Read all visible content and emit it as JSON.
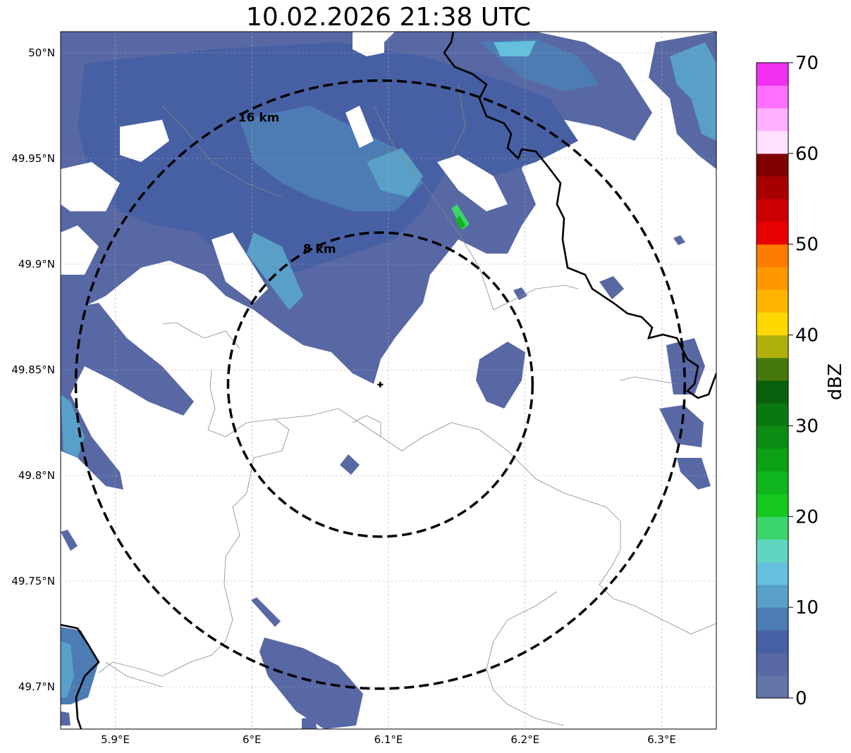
{
  "title": "10.02.2026 21:38 UTC",
  "map": {
    "lon_range": [
      5.86,
      6.34
    ],
    "lat_range": [
      49.68,
      50.01
    ],
    "lon_ticks": [
      {
        "value": 5.9,
        "label": "5.9°E"
      },
      {
        "value": 6.0,
        "label": "6°E"
      },
      {
        "value": 6.1,
        "label": "6.1°E"
      },
      {
        "value": 6.2,
        "label": "6.2°E"
      },
      {
        "value": 6.3,
        "label": "6.3°E"
      }
    ],
    "lat_ticks": [
      {
        "value": 50.0,
        "label": "50°N"
      },
      {
        "value": 49.95,
        "label": "49.95°N"
      },
      {
        "value": 49.9,
        "label": "49.9°N"
      },
      {
        "value": 49.85,
        "label": "49.85°N"
      },
      {
        "value": 49.8,
        "label": "49.8°N"
      },
      {
        "value": 49.75,
        "label": "49.75°N"
      },
      {
        "value": 49.7,
        "label": "49.7°N"
      }
    ],
    "gridlines": true,
    "radar_site": {
      "lon": 6.094,
      "lat": 49.843
    },
    "range_rings": [
      {
        "radius_km": 8,
        "label": "8 km"
      },
      {
        "radius_km": 16,
        "label": "16 km"
      }
    ],
    "ring_style": "black dashed"
  },
  "colorbar": {
    "label": "dBZ",
    "min": 0,
    "max": 70,
    "tick_values": [
      0,
      10,
      20,
      30,
      40,
      50,
      60,
      70
    ],
    "tick_labels": [
      "0",
      "10",
      "20",
      "30",
      "40",
      "50",
      "60",
      "70"
    ],
    "bins": [
      {
        "from": 0,
        "to": 2.5,
        "color": "#6474a8"
      },
      {
        "from": 2.5,
        "to": 5,
        "color": "#5868a4"
      },
      {
        "from": 5,
        "to": 7.5,
        "color": "#4760a4"
      },
      {
        "from": 7.5,
        "to": 10,
        "color": "#4d7cb4"
      },
      {
        "from": 10,
        "to": 12.5,
        "color": "#58a0c8"
      },
      {
        "from": 12.5,
        "to": 15,
        "color": "#64c0dc"
      },
      {
        "from": 15,
        "to": 17.5,
        "color": "#5ed6c0"
      },
      {
        "from": 17.5,
        "to": 20,
        "color": "#3cd46c"
      },
      {
        "from": 20,
        "to": 22.5,
        "color": "#14c820"
      },
      {
        "from": 22.5,
        "to": 25,
        "color": "#10b41c"
      },
      {
        "from": 25,
        "to": 27.5,
        "color": "#0ca014"
      },
      {
        "from": 27.5,
        "to": 30,
        "color": "#0c8c14"
      },
      {
        "from": 30,
        "to": 32.5,
        "color": "#0a7810"
      },
      {
        "from": 32.5,
        "to": 35,
        "color": "#08600c"
      },
      {
        "from": 35,
        "to": 37.5,
        "color": "#46780c"
      },
      {
        "from": 37.5,
        "to": 40,
        "color": "#b0b00c"
      },
      {
        "from": 40,
        "to": 42.5,
        "color": "#ffd800"
      },
      {
        "from": 42.5,
        "to": 45,
        "color": "#ffb400"
      },
      {
        "from": 45,
        "to": 47.5,
        "color": "#ff9800"
      },
      {
        "from": 47.5,
        "to": 50,
        "color": "#ff7c00"
      },
      {
        "from": 50,
        "to": 52.5,
        "color": "#e80000"
      },
      {
        "from": 52.5,
        "to": 55,
        "color": "#cc0000"
      },
      {
        "from": 55,
        "to": 57.5,
        "color": "#a80000"
      },
      {
        "from": 57.5,
        "to": 60,
        "color": "#800000"
      },
      {
        "from": 60,
        "to": 62.5,
        "color": "#ffe0ff"
      },
      {
        "from": 62.5,
        "to": 65,
        "color": "#ffb0ff"
      },
      {
        "from": 65,
        "to": 67.5,
        "color": "#ff70ff"
      },
      {
        "from": 67.5,
        "to": 70,
        "color": "#f030f0"
      }
    ]
  }
}
